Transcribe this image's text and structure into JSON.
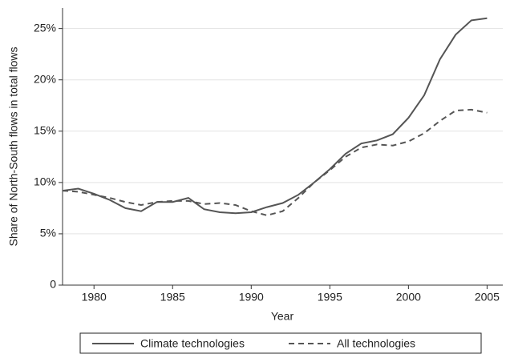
{
  "chart_data": {
    "type": "line",
    "y_label": "Share of North-South flows in total flows",
    "x_label": "Year",
    "x": [
      1978,
      1979,
      1980,
      1981,
      1982,
      1983,
      1984,
      1985,
      1986,
      1987,
      1988,
      1989,
      1990,
      1991,
      1992,
      1993,
      1994,
      1995,
      1996,
      1997,
      1998,
      1999,
      2000,
      2001,
      2002,
      2003,
      2004,
      2005
    ],
    "series": [
      {
        "name": "Climate technologies",
        "color": "#555555",
        "dash": "solid",
        "values": [
          9.2,
          9.4,
          8.9,
          8.3,
          7.5,
          7.2,
          8.1,
          8.1,
          8.5,
          7.4,
          7.1,
          7.0,
          7.1,
          7.6,
          8.0,
          8.8,
          10.0,
          11.3,
          12.8,
          13.8,
          14.1,
          14.7,
          16.3,
          18.5,
          22.0,
          24.4,
          25.8,
          26.0
        ]
      },
      {
        "name": "All technologies",
        "color": "#555555",
        "dash": "dashed",
        "values": [
          9.2,
          9.1,
          8.8,
          8.5,
          8.1,
          7.8,
          8.1,
          8.2,
          8.2,
          7.9,
          8.0,
          7.8,
          7.2,
          6.8,
          7.2,
          8.5,
          10.0,
          11.2,
          12.5,
          13.4,
          13.7,
          13.6,
          14.0,
          14.8,
          16.0,
          17.0,
          17.1,
          16.8
        ]
      }
    ],
    "xlim": [
      1978,
      2006
    ],
    "xticks": [
      1980,
      1985,
      1990,
      1995,
      2000,
      2005
    ],
    "ylim": [
      0,
      27
    ],
    "yticks": [
      0,
      {
        "value": 5,
        "label": "5%"
      },
      {
        "value": 10,
        "label": "10%"
      },
      {
        "value": 15,
        "label": "15%"
      },
      {
        "value": 20,
        "label": "20%"
      },
      {
        "value": 25,
        "label": "25%"
      }
    ],
    "grid": true,
    "legend": "bottom"
  }
}
